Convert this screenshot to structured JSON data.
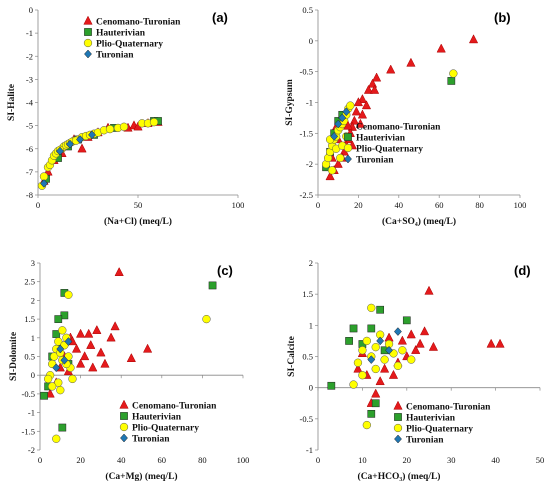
{
  "chart_data": [
    {
      "type": "scatter",
      "panel_label": "(a)",
      "xlabel": "(Na+Cl) (meq/L)",
      "ylabel": "SI-Halite",
      "xlim": [
        0,
        100
      ],
      "ylim": [
        -8,
        0
      ],
      "x_ticks": [
        0,
        50,
        100
      ],
      "y_ticks": [
        0,
        -1,
        -2,
        -3,
        -4,
        -5,
        -6,
        -7,
        -8
      ],
      "legend_position": "top-center",
      "series": [
        {
          "name": "Cenomano-Turonian",
          "marker": "triangle",
          "color": "#e41a1c",
          "points": [
            [
              3,
              -7.4
            ],
            [
              5,
              -7.0
            ],
            [
              8,
              -6.5
            ],
            [
              12,
              -6.2
            ],
            [
              18,
              -5.6
            ],
            [
              25,
              -5.5
            ],
            [
              30,
              -5.3
            ],
            [
              45,
              -5.1
            ],
            [
              48,
              -5.0
            ],
            [
              55,
              -4.9
            ],
            [
              60,
              -4.85
            ],
            [
              22,
              -6.0
            ],
            [
              35,
              -5.1
            ],
            [
              50,
              -5.05
            ]
          ]
        },
        {
          "name": "Hauterivian",
          "marker": "square",
          "color": "#2ca02c",
          "points": [
            [
              4,
              -7.3
            ],
            [
              10,
              -6.4
            ],
            [
              15,
              -5.9
            ],
            [
              20,
              -5.6
            ],
            [
              28,
              -5.4
            ],
            [
              58,
              -4.8
            ],
            [
              60,
              -4.8
            ],
            [
              38,
              -5.1
            ]
          ]
        },
        {
          "name": "Plio-Quaternary",
          "marker": "circle",
          "color": "#ffff00",
          "points": [
            [
              2,
              -7.6
            ],
            [
              3,
              -7.2
            ],
            [
              5,
              -6.8
            ],
            [
              6,
              -6.7
            ],
            [
              7,
              -6.5
            ],
            [
              8,
              -6.3
            ],
            [
              9,
              -6.2
            ],
            [
              10,
              -6.1
            ],
            [
              12,
              -6.0
            ],
            [
              13,
              -5.9
            ],
            [
              14,
              -5.85
            ],
            [
              15,
              -5.8
            ],
            [
              16,
              -5.75
            ],
            [
              18,
              -5.65
            ],
            [
              20,
              -5.6
            ],
            [
              22,
              -5.5
            ],
            [
              24,
              -5.45
            ],
            [
              26,
              -5.4
            ],
            [
              28,
              -5.35
            ],
            [
              30,
              -5.3
            ],
            [
              33,
              -5.2
            ],
            [
              36,
              -5.15
            ],
            [
              40,
              -5.1
            ],
            [
              43,
              -5.05
            ],
            [
              52,
              -4.9
            ],
            [
              55,
              -4.9
            ],
            [
              58,
              -4.85
            ],
            [
              11,
              -6.05
            ],
            [
              17,
              -5.7
            ],
            [
              19,
              -5.65
            ]
          ]
        },
        {
          "name": "Turonian",
          "marker": "diamond",
          "color": "#1f77b4",
          "points": [
            [
              3,
              -7.5
            ],
            [
              11,
              -6.1
            ],
            [
              16,
              -5.8
            ],
            [
              21,
              -5.6
            ],
            [
              27,
              -5.4
            ]
          ]
        }
      ]
    },
    {
      "type": "scatter",
      "panel_label": "(b)",
      "xlabel": "(Ca+SO₄) (meq/L)",
      "ylabel": "SI-Gypsum",
      "xlim": [
        0,
        100
      ],
      "ylim": [
        -2.5,
        0.5
      ],
      "x_ticks": [
        0,
        20,
        40,
        60,
        80,
        100
      ],
      "y_ticks": [
        0.5,
        0,
        -0.5,
        -1,
        -1.5,
        -2,
        -2.5
      ],
      "legend_position": "bottom-right",
      "series": [
        {
          "name": "Cenomano-Turonian",
          "marker": "triangle",
          "color": "#e41a1c",
          "points": [
            [
              77,
              0.02
            ],
            [
              61,
              -0.13
            ],
            [
              46,
              -0.36
            ],
            [
              36,
              -0.47
            ],
            [
              29,
              -0.6
            ],
            [
              27,
              -0.7
            ],
            [
              25,
              -0.8
            ],
            [
              22,
              -0.95
            ],
            [
              20,
              -1.0
            ],
            [
              19,
              -1.15
            ],
            [
              18,
              -1.3
            ],
            [
              17,
              -1.4
            ],
            [
              16,
              -1.5
            ],
            [
              15,
              -1.6
            ],
            [
              14,
              -1.7
            ],
            [
              13,
              -1.8
            ],
            [
              12,
              -1.9
            ],
            [
              10,
              -2.0
            ],
            [
              8,
              -2.1
            ],
            [
              6,
              -2.2
            ],
            [
              22,
              -1.2
            ],
            [
              24,
              -1.05
            ],
            [
              28,
              -0.8
            ],
            [
              17,
              -1.7
            ],
            [
              10,
              -1.6
            ],
            [
              9,
              -1.4
            ],
            [
              7,
              -1.9
            ],
            [
              21,
              -1.35
            ]
          ]
        },
        {
          "name": "Hauterivian",
          "marker": "square",
          "color": "#2ca02c",
          "points": [
            [
              66,
              -0.65
            ],
            [
              10,
              -1.3
            ],
            [
              8,
              -1.5
            ],
            [
              12,
              -1.2
            ],
            [
              6,
              -1.8
            ],
            [
              4,
              -2.05
            ]
          ]
        },
        {
          "name": "Plio-Quaternary",
          "marker": "circle",
          "color": "#ffff00",
          "points": [
            [
              67,
              -0.53
            ],
            [
              4,
              -2.0
            ],
            [
              5,
              -1.9
            ],
            [
              6,
              -1.8
            ],
            [
              7,
              -1.7
            ],
            [
              8,
              -1.6
            ],
            [
              9,
              -1.55
            ],
            [
              10,
              -1.45
            ],
            [
              11,
              -1.4
            ],
            [
              12,
              -1.35
            ],
            [
              13,
              -1.3
            ],
            [
              14,
              -1.2
            ],
            [
              15,
              -1.1
            ],
            [
              16,
              -1.05
            ],
            [
              6,
              -1.6
            ],
            [
              9,
              -1.75
            ],
            [
              12,
              -1.7
            ],
            [
              14,
              -1.55
            ],
            [
              11,
              -1.9
            ],
            [
              7,
              -2.1
            ]
          ]
        },
        {
          "name": "Turonian",
          "marker": "diamond",
          "color": "#1f77b4",
          "points": [
            [
              8,
              -1.55
            ],
            [
              10,
              -1.35
            ],
            [
              12,
              -1.25
            ],
            [
              14,
              -1.15
            ]
          ]
        }
      ]
    },
    {
      "type": "scatter",
      "panel_label": "(c)",
      "xlabel": "(Ca+Mg) (meq/L)",
      "ylabel": "SI-Dolomite",
      "xlim": [
        0,
        100
      ],
      "ylim": [
        -2,
        3
      ],
      "x_ticks": [
        0,
        20,
        40,
        60,
        80,
        100
      ],
      "y_ticks": [
        3,
        2.5,
        2,
        1.5,
        1,
        0.5,
        0,
        -0.5,
        -1,
        -1.5,
        -2
      ],
      "legend_position": "bottom-right",
      "series": [
        {
          "name": "Cenomano-Turonian",
          "marker": "triangle",
          "color": "#e41a1c",
          "points": [
            [
              39,
              2.75
            ],
            [
              37,
              1.3
            ],
            [
              35,
              1.0
            ],
            [
              30,
              0.6
            ],
            [
              28,
              1.2
            ],
            [
              25,
              0.8
            ],
            [
              22,
              0.5
            ],
            [
              20,
              0.3
            ],
            [
              18,
              0.7
            ],
            [
              15,
              1.0
            ],
            [
              12,
              0.5
            ],
            [
              10,
              0.2
            ],
            [
              8,
              -0.2
            ],
            [
              5,
              -0.5
            ],
            [
              45,
              0.45
            ],
            [
              53,
              0.7
            ],
            [
              32,
              0.3
            ],
            [
              24,
              1.1
            ],
            [
              14,
              0.1
            ],
            [
              16,
              0.9
            ],
            [
              26,
              0.2
            ],
            [
              20,
              1.1
            ]
          ]
        },
        {
          "name": "Hauterivian",
          "marker": "square",
          "color": "#2ca02c",
          "points": [
            [
              85,
              2.4
            ],
            [
              12,
              2.2
            ],
            [
              12,
              1.6
            ],
            [
              8,
              1.1
            ],
            [
              10,
              0.8
            ],
            [
              6,
              0.5
            ],
            [
              4,
              -0.3
            ],
            [
              2,
              -0.55
            ],
            [
              11,
              -1.4
            ],
            [
              14,
              0.3
            ],
            [
              9,
              1.5
            ]
          ]
        },
        {
          "name": "Plio-Quaternary",
          "marker": "circle",
          "color": "#ffff00",
          "points": [
            [
              82,
              1.5
            ],
            [
              14,
              2.15
            ],
            [
              8,
              -1.7
            ],
            [
              5,
              0.0
            ],
            [
              6,
              0.3
            ],
            [
              7,
              0.5
            ],
            [
              8,
              0.7
            ],
            [
              9,
              0.9
            ],
            [
              10,
              0.6
            ],
            [
              11,
              0.4
            ],
            [
              12,
              0.8
            ],
            [
              13,
              1.0
            ],
            [
              14,
              0.5
            ],
            [
              15,
              0.2
            ],
            [
              16,
              -0.1
            ],
            [
              9,
              -0.2
            ],
            [
              10,
              -0.4
            ],
            [
              11,
              1.2
            ],
            [
              13,
              0.3
            ],
            [
              4,
              -0.1
            ],
            [
              6,
              -0.3
            ]
          ]
        },
        {
          "name": "Turonian",
          "marker": "diamond",
          "color": "#1f77b4",
          "points": [
            [
              10,
              0.7
            ],
            [
              12,
              0.4
            ],
            [
              14,
              0.9
            ],
            [
              8,
              0.2
            ]
          ]
        }
      ]
    },
    {
      "type": "scatter",
      "panel_label": "(d)",
      "xlabel": "(Ca+HCO₃) (meq/L)",
      "ylabel": "SI-Calcite",
      "xlim": [
        0,
        50
      ],
      "ylim": [
        -1,
        2
      ],
      "x_ticks": [
        0,
        10,
        20,
        30,
        40,
        50
      ],
      "y_ticks": [
        2,
        1.5,
        1,
        0.5,
        0,
        -0.5,
        -1
      ],
      "legend_position": "bottom-right",
      "series": [
        {
          "name": "Cenomano-Turonian",
          "marker": "triangle",
          "color": "#e41a1c",
          "points": [
            [
              25,
              1.55
            ],
            [
              39,
              0.7
            ],
            [
              41,
              0.7
            ],
            [
              24,
              0.9
            ],
            [
              22,
              0.6
            ],
            [
              20,
              0.5
            ],
            [
              18,
              0.4
            ],
            [
              16,
              0.8
            ],
            [
              15,
              0.3
            ],
            [
              14,
              0.1
            ],
            [
              13,
              -0.1
            ],
            [
              12,
              -0.25
            ],
            [
              11,
              0.2
            ],
            [
              10,
              0.55
            ],
            [
              9,
              0.3
            ],
            [
              21,
              0.85
            ],
            [
              23,
              0.7
            ],
            [
              19,
              0.75
            ],
            [
              17,
              0.2
            ],
            [
              26,
              0.65
            ]
          ]
        },
        {
          "name": "Hauterivian",
          "marker": "square",
          "color": "#2ca02c",
          "points": [
            [
              20,
              1.08
            ],
            [
              14,
              1.25
            ],
            [
              12,
              0.95
            ],
            [
              8,
              0.95
            ],
            [
              10,
              0.7
            ],
            [
              7,
              0.75
            ],
            [
              3,
              0.03
            ],
            [
              12,
              -0.42
            ],
            [
              13,
              -0.25
            ],
            [
              15,
              0.6
            ]
          ]
        },
        {
          "name": "Plio-Quaternary",
          "marker": "circle",
          "color": "#ffff00",
          "points": [
            [
              12,
              1.28
            ],
            [
              11,
              -0.6
            ],
            [
              8,
              0.05
            ],
            [
              9,
              0.4
            ],
            [
              10,
              0.6
            ],
            [
              11,
              0.75
            ],
            [
              12,
              0.5
            ],
            [
              13,
              0.65
            ],
            [
              14,
              0.85
            ],
            [
              15,
              0.45
            ],
            [
              16,
              0.7
            ],
            [
              17,
              0.55
            ],
            [
              18,
              0.35
            ],
            [
              19,
              0.6
            ],
            [
              21,
              0.45
            ],
            [
              13,
              0.3
            ],
            [
              10,
              0.2
            ]
          ]
        },
        {
          "name": "Turonian",
          "marker": "diamond",
          "color": "#1f77b4",
          "points": [
            [
              14,
              0.75
            ],
            [
              16,
              0.6
            ],
            [
              18,
              0.9
            ],
            [
              12,
              0.45
            ]
          ]
        }
      ]
    }
  ]
}
